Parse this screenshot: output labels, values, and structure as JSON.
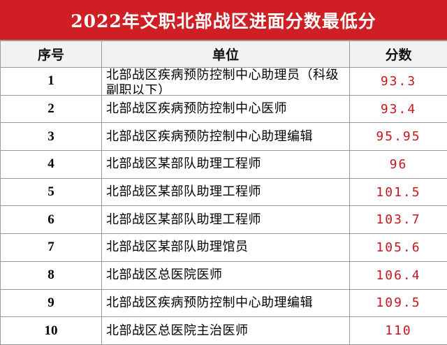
{
  "header": {
    "title": "2022年文职北部战区进面分数最低分"
  },
  "table": {
    "columns": [
      "序号",
      "单位",
      "分数"
    ],
    "rows": [
      [
        "1",
        "北部战区疾病预防控制中心助理员（科级副职以下）",
        "93.3"
      ],
      [
        "2",
        "北部战区疾病预防控制中心医师",
        "93.4"
      ],
      [
        "3",
        "北部战区疾病预防控制中心助理编辑",
        "95.95"
      ],
      [
        "4",
        "北部战区某部队助理工程师",
        "96"
      ],
      [
        "5",
        "北部战区某部队助理工程师",
        "101.5"
      ],
      [
        "6",
        "北部战区某部队助理工程师",
        "103.7"
      ],
      [
        "7",
        "北部战区某部队助理馆员",
        "105.6"
      ],
      [
        "8",
        "北部战区总医院医师",
        "106.4"
      ],
      [
        "9",
        "北部战区疾病预防控制中心助理编辑",
        "109.5"
      ],
      [
        "10",
        "北部战区总医院主治医师",
        "110"
      ]
    ]
  }
}
